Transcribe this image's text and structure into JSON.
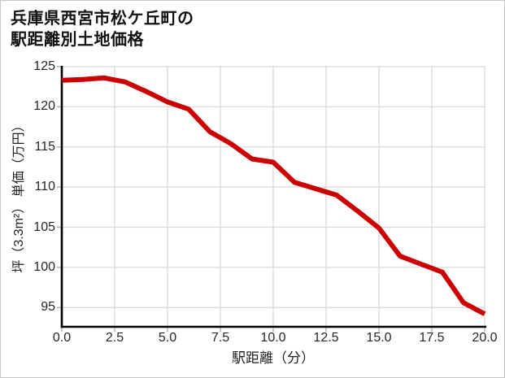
{
  "title": {
    "line1": "兵庫県西宮市松ケ丘町の",
    "line2": "駅距離別土地価格"
  },
  "chart_data": {
    "type": "line",
    "title": "兵庫県西宮市松ケ丘町の駅距離別土地価格",
    "xlabel": "駅距離（分）",
    "ylabel": "坪（3.3m²） 単価（万円）",
    "x": [
      0,
      1,
      2,
      3,
      4,
      5,
      6,
      7,
      8,
      9,
      10,
      11,
      12,
      13,
      14,
      15,
      16,
      17,
      18,
      19,
      20
    ],
    "y": [
      123.3,
      123.4,
      123.6,
      123.1,
      121.9,
      120.6,
      119.7,
      116.9,
      115.4,
      113.5,
      113.1,
      110.6,
      109.8,
      109.0,
      107.0,
      104.9,
      101.4,
      100.4,
      99.4,
      95.6,
      94.2
    ],
    "x_ticks": [
      0,
      2.5,
      5,
      7.5,
      10,
      12.5,
      15,
      17.5,
      20
    ],
    "x_tick_labels": [
      "0.0",
      "2.5",
      "5.0",
      "7.5",
      "10.0",
      "12.5",
      "15.0",
      "17.5",
      "20.0"
    ],
    "y_ticks": [
      95,
      100,
      105,
      110,
      115,
      120,
      125
    ],
    "y_tick_labels": [
      "95",
      "100",
      "105",
      "110",
      "115",
      "120",
      "125"
    ],
    "xlim": [
      0,
      20
    ],
    "ylim": [
      92.6,
      125.1
    ],
    "grid": true,
    "legend": "none",
    "line_color": "#cc0000",
    "line_width": 6,
    "grid_color": "#d9d9d9",
    "axis_color": "#000000",
    "tick_mark_color": "#b0b0b0",
    "tick_label_color": "#262626"
  }
}
